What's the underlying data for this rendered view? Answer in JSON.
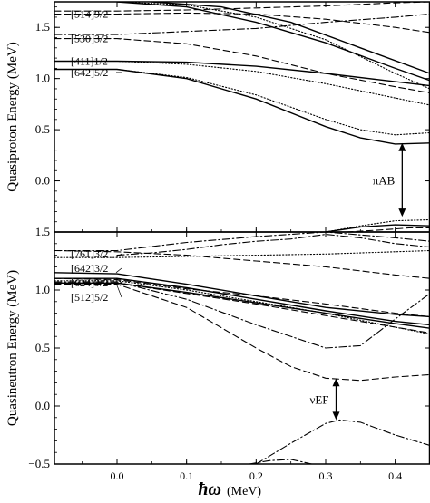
{
  "figure": {
    "x_axis_label_symbol": "ħω",
    "x_axis_label_unit": "(MeV)"
  },
  "chart_data": [
    {
      "type": "line",
      "panel": "top",
      "ylabel": "Quasiproton Energy (MeV)",
      "xlim": [
        -0.09,
        0.45
      ],
      "ylim": [
        -0.5,
        1.75
      ],
      "x_ticks": [
        0.0,
        0.1,
        0.2,
        0.3,
        0.4
      ],
      "y_ticks": [
        0.0,
        0.5,
        1.0,
        1.5
      ],
      "y_tick_labels": [
        "0.0",
        "0.5",
        "1.0",
        "1.5"
      ],
      "orbital_labels": [
        {
          "text": "[514]9/2",
          "at_y": 1.63
        },
        {
          "text": "[530]3/2",
          "at_y": 1.39
        },
        {
          "text": "[411]1/2",
          "at_y": 1.17
        },
        {
          "text": "[642]5/2",
          "at_y": 1.06
        }
      ],
      "annotations": [
        {
          "text": "πAB",
          "arrow_from": 0.37,
          "arrow_to": -0.35,
          "at_x": 0.41
        }
      ],
      "series": [
        {
          "style": "solid",
          "x": [
            -0.09,
            0.0,
            0.1,
            0.2,
            0.3,
            0.35,
            0.4,
            0.45
          ],
          "y": [
            1.09,
            1.09,
            1.0,
            0.8,
            0.53,
            0.42,
            0.36,
            0.37
          ]
        },
        {
          "style": "dotted",
          "x": [
            -0.09,
            0.0,
            0.1,
            0.2,
            0.3,
            0.35,
            0.4,
            0.45
          ],
          "y": [
            1.09,
            1.09,
            1.01,
            0.84,
            0.6,
            0.5,
            0.45,
            0.47
          ]
        },
        {
          "style": "solid",
          "x": [
            -0.09,
            0.0,
            0.1,
            0.2,
            0.3,
            0.4,
            0.45
          ],
          "y": [
            1.17,
            1.17,
            1.16,
            1.12,
            1.05,
            0.97,
            0.93
          ]
        },
        {
          "style": "dotted",
          "x": [
            -0.09,
            0.0,
            0.1,
            0.2,
            0.3,
            0.4,
            0.45
          ],
          "y": [
            1.17,
            1.17,
            1.14,
            1.07,
            0.95,
            0.81,
            0.74
          ]
        },
        {
          "style": "dashed",
          "x": [
            -0.09,
            0.0,
            0.1,
            0.2,
            0.3,
            0.4,
            0.45
          ],
          "y": [
            1.39,
            1.39,
            1.34,
            1.22,
            1.05,
            0.92,
            0.86
          ]
        },
        {
          "style": "dashdot",
          "x": [
            -0.09,
            0.0,
            0.1,
            0.2,
            0.3,
            0.4,
            0.45
          ],
          "y": [
            1.43,
            1.43,
            1.46,
            1.49,
            1.55,
            1.6,
            1.63
          ]
        },
        {
          "style": "dashed",
          "x": [
            -0.09,
            0.0,
            0.1,
            0.2,
            0.3,
            0.4,
            0.45
          ],
          "y": [
            1.63,
            1.63,
            1.64,
            1.63,
            1.58,
            1.5,
            1.45
          ]
        },
        {
          "style": "dashed",
          "x": [
            -0.09,
            0.0,
            0.1,
            0.2,
            0.3,
            0.4,
            0.45
          ],
          "y": [
            1.66,
            1.66,
            1.67,
            1.69,
            1.71,
            1.74,
            1.75
          ]
        },
        {
          "style": "solid",
          "x": [
            0.0,
            0.1,
            0.2,
            0.3,
            0.4,
            0.45
          ],
          "y": [
            1.75,
            1.7,
            1.55,
            1.35,
            1.1,
            0.98
          ]
        },
        {
          "style": "dotted",
          "x": [
            0.0,
            0.1,
            0.2,
            0.3,
            0.4,
            0.45
          ],
          "y": [
            1.75,
            1.72,
            1.6,
            1.38,
            1.05,
            0.9
          ]
        },
        {
          "style": "solid",
          "x": [
            0.05,
            0.15,
            0.25,
            0.35,
            0.45
          ],
          "y": [
            1.75,
            1.7,
            1.55,
            1.3,
            1.05
          ]
        },
        {
          "style": "solid",
          "x": [
            0.3,
            0.35,
            0.4,
            0.45
          ],
          "y": [
            -0.5,
            -0.45,
            -0.43,
            -0.44
          ]
        },
        {
          "style": "dotted",
          "x": [
            0.3,
            0.35,
            0.4,
            0.45
          ],
          "y": [
            -0.5,
            -0.44,
            -0.39,
            -0.38
          ]
        },
        {
          "style": "dashed",
          "x": [
            0.33,
            0.38,
            0.42,
            0.45
          ],
          "y": [
            -0.5,
            -0.48,
            -0.46,
            -0.46
          ]
        }
      ]
    },
    {
      "type": "line",
      "panel": "bottom",
      "ylabel": "Quasineutron Energy (MeV)",
      "xlabel": "ħω (MeV)",
      "xlim": [
        -0.09,
        0.45
      ],
      "ylim": [
        -0.5,
        1.5
      ],
      "x_ticks": [
        0.0,
        0.1,
        0.2,
        0.3,
        0.4
      ],
      "x_tick_labels": [
        "0.0",
        "0.1",
        "0.2",
        "0.3",
        "0.4"
      ],
      "y_ticks": [
        -0.5,
        0.0,
        0.5,
        1.0,
        1.5
      ],
      "y_tick_labels": [
        "−0.5",
        "0.0",
        "0.5",
        "1.0",
        "1.5"
      ],
      "orbital_labels": [
        {
          "text": "[761]3/2",
          "at_y": 1.28
        },
        {
          "text": "[642]3/2",
          "at_y": 1.15
        },
        {
          "text": "[624]9/2",
          "at_y": 1.1
        },
        {
          "text": "[512]5/2",
          "at_y": 1.06
        }
      ],
      "annotations": [
        {
          "text": "νEF",
          "arrow_from": 0.24,
          "arrow_to": -0.12,
          "at_x": 0.315
        }
      ],
      "series": [
        {
          "style": "dashdot",
          "x": [
            -0.09,
            0.0,
            0.1,
            0.2,
            0.3,
            0.4,
            0.45
          ],
          "y": [
            1.34,
            1.34,
            1.41,
            1.46,
            1.5,
            1.45,
            1.42
          ]
        },
        {
          "style": "dotted",
          "x": [
            -0.09,
            0.0,
            0.1,
            0.2,
            0.3,
            0.4,
            0.45
          ],
          "y": [
            1.28,
            1.28,
            1.29,
            1.3,
            1.31,
            1.33,
            1.34
          ]
        },
        {
          "style": "dashed",
          "x": [
            -0.09,
            0.0,
            0.1,
            0.2,
            0.3,
            0.4,
            0.45
          ],
          "y": [
            1.34,
            1.33,
            1.3,
            1.25,
            1.2,
            1.13,
            1.1
          ]
        },
        {
          "style": "solid",
          "x": [
            -0.09,
            0.0,
            0.1,
            0.2,
            0.3,
            0.4,
            0.45
          ],
          "y": [
            1.15,
            1.14,
            1.05,
            0.95,
            0.85,
            0.79,
            0.77
          ]
        },
        {
          "style": "solid",
          "x": [
            -0.09,
            0.0,
            0.1,
            0.2,
            0.3,
            0.4,
            0.45
          ],
          "y": [
            1.1,
            1.1,
            1.02,
            0.92,
            0.82,
            0.73,
            0.7
          ]
        },
        {
          "style": "solid",
          "x": [
            -0.09,
            0.0,
            0.1,
            0.2,
            0.3,
            0.4,
            0.45
          ],
          "y": [
            1.06,
            1.06,
            0.98,
            0.89,
            0.8,
            0.71,
            0.67
          ]
        },
        {
          "style": "dotted",
          "x": [
            -0.09,
            0.0,
            0.1,
            0.2,
            0.3,
            0.4,
            0.45
          ],
          "y": [
            1.08,
            1.08,
            1.0,
            0.9,
            0.8,
            0.68,
            0.62
          ]
        },
        {
          "style": "dashed",
          "x": [
            -0.09,
            0.0,
            0.1,
            0.2,
            0.3,
            0.4,
            0.45
          ],
          "y": [
            1.06,
            1.06,
            0.97,
            0.88,
            0.78,
            0.68,
            0.63
          ]
        },
        {
          "style": "dashed",
          "x": [
            -0.09,
            0.0,
            0.1,
            0.2,
            0.3,
            0.4,
            0.45
          ],
          "y": [
            1.1,
            1.09,
            1.01,
            0.95,
            0.88,
            0.8,
            0.77
          ]
        },
        {
          "style": "dashdot",
          "x": [
            -0.09,
            0.0,
            0.1,
            0.2,
            0.3,
            0.35,
            0.4,
            0.45
          ],
          "y": [
            1.07,
            1.07,
            0.92,
            0.7,
            0.5,
            0.52,
            0.75,
            0.97
          ]
        },
        {
          "style": "dashed",
          "x": [
            -0.09,
            0.0,
            0.1,
            0.2,
            0.25,
            0.3,
            0.35,
            0.4,
            0.45
          ],
          "y": [
            1.05,
            1.05,
            0.85,
            0.5,
            0.34,
            0.24,
            0.22,
            0.25,
            0.27
          ]
        },
        {
          "style": "dashdot",
          "x": [
            0.0,
            0.05,
            0.1,
            0.15,
            0.2,
            0.25,
            0.3,
            0.35,
            0.4,
            0.45
          ],
          "y": [
            1.3,
            1.32,
            1.35,
            1.39,
            1.42,
            1.44,
            1.48,
            1.45,
            1.4,
            1.37
          ]
        },
        {
          "style": "dashdot",
          "x": [
            0.2,
            0.25,
            0.3,
            0.32,
            0.35,
            0.4,
            0.45
          ],
          "y": [
            -0.5,
            -0.32,
            -0.15,
            -0.12,
            -0.14,
            -0.25,
            -0.34
          ]
        },
        {
          "style": "dashdot",
          "x": [
            0.19,
            0.22,
            0.25,
            0.28
          ],
          "y": [
            -0.5,
            -0.47,
            -0.46,
            -0.5
          ]
        }
      ]
    }
  ]
}
